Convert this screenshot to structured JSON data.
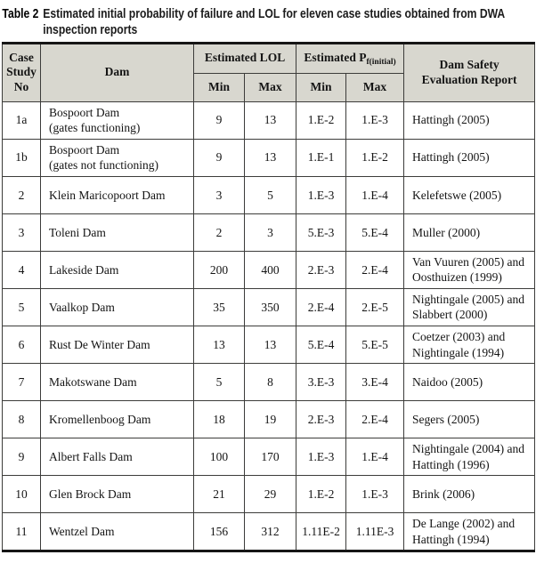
{
  "title": {
    "label": "Table 2",
    "line1": "Estimated initial probability of failure and LOL for eleven case studies obtained from DWA",
    "line2": "inspection reports"
  },
  "colors": {
    "header_bg": "#d8d7cf",
    "border": "#3c3c3a",
    "thick_rule": "#161616",
    "text": "#141414"
  },
  "table": {
    "header": {
      "case_study_no": "Case\nStudy\nNo",
      "dam": "Dam",
      "estimated_lol": "Estimated LOL",
      "estimated_pf_main": "Estimated P",
      "estimated_pf_sub": "f(initial)",
      "min": "Min",
      "max": "Max",
      "report": "Dam Safety\nEvaluation Report"
    },
    "rows": [
      {
        "no": "1a",
        "dam": "Bospoort Dam\n(gates functioning)",
        "lol_min": "9",
        "lol_max": "13",
        "pf_min": "1.E-2",
        "pf_max": "1.E-3",
        "report": "Hattingh (2005)"
      },
      {
        "no": "1b",
        "dam": "Bospoort Dam\n(gates not functioning)",
        "lol_min": "9",
        "lol_max": "13",
        "pf_min": "1.E-1",
        "pf_max": "1.E-2",
        "report": "Hattingh (2005)"
      },
      {
        "no": "2",
        "dam": "Klein Maricopoort Dam",
        "lol_min": "3",
        "lol_max": "5",
        "pf_min": "1.E-3",
        "pf_max": "1.E-4",
        "report": "Kelefetswe (2005)"
      },
      {
        "no": "3",
        "dam": "Toleni Dam",
        "lol_min": "2",
        "lol_max": "3",
        "pf_min": "5.E-3",
        "pf_max": "5.E-4",
        "report": "Muller (2000)"
      },
      {
        "no": "4",
        "dam": "Lakeside Dam",
        "lol_min": "200",
        "lol_max": "400",
        "pf_min": "2.E-3",
        "pf_max": "2.E-4",
        "report": "Van Vuuren (2005) and\nOosthuizen (1999)"
      },
      {
        "no": "5",
        "dam": "Vaalkop Dam",
        "lol_min": "35",
        "lol_max": "350",
        "pf_min": "2.E-4",
        "pf_max": "2.E-5",
        "report": "Nightingale (2005) and\nSlabbert (2000)"
      },
      {
        "no": "6",
        "dam": "Rust De Winter Dam",
        "lol_min": "13",
        "lol_max": "13",
        "pf_min": "5.E-4",
        "pf_max": "5.E-5",
        "report": "Coetzer (2003) and\nNightingale (1994)"
      },
      {
        "no": "7",
        "dam": "Makotswane Dam",
        "lol_min": "5",
        "lol_max": "8",
        "pf_min": "3.E-3",
        "pf_max": "3.E-4",
        "report": "Naidoo (2005)"
      },
      {
        "no": "8",
        "dam": "Kromellenboog Dam",
        "lol_min": "18",
        "lol_max": "19",
        "pf_min": "2.E-3",
        "pf_max": "2.E-4",
        "report": "Segers (2005)"
      },
      {
        "no": "9",
        "dam": "Albert Falls Dam",
        "lol_min": "100",
        "lol_max": "170",
        "pf_min": "1.E-3",
        "pf_max": "1.E-4",
        "report": "Nightingale (2004) and\nHattingh (1996)"
      },
      {
        "no": "10",
        "dam": "Glen Brock Dam",
        "lol_min": "21",
        "lol_max": "29",
        "pf_min": "1.E-2",
        "pf_max": "1.E-3",
        "report": "Brink (2006)"
      },
      {
        "no": "11",
        "dam": "Wentzel Dam",
        "lol_min": "156",
        "lol_max": "312",
        "pf_min": "1.11E-2",
        "pf_max": "1.11E-3",
        "report": "De Lange (2002) and\nHattingh (1994)"
      }
    ]
  }
}
